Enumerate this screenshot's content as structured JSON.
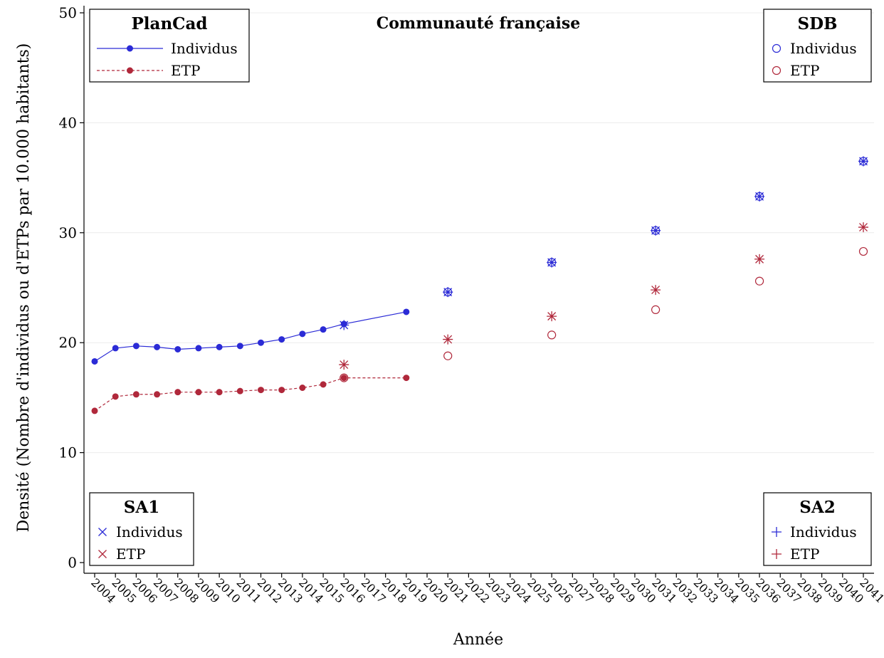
{
  "chart_data": {
    "type": "line",
    "title": "Communauté française",
    "xlabel": "Année",
    "ylabel": "Densité (Nombre d'individus ou d'ETPs par 10.000 habitants)",
    "ylim": [
      0,
      50
    ],
    "yticks": [
      0,
      10,
      20,
      30,
      40,
      50
    ],
    "xrange": [
      2004,
      2041
    ],
    "grid": "horizontal",
    "categories": [
      "2004",
      "2005",
      "2006",
      "2007",
      "2008",
      "2009",
      "2010",
      "2011",
      "2012",
      "2013",
      "2014",
      "2015",
      "2016",
      "2017",
      "2018",
      "2019",
      "2020",
      "2021",
      "2022",
      "2023",
      "2024",
      "2025",
      "2026",
      "2027",
      "2028",
      "2029",
      "2030",
      "2031",
      "2032",
      "2033",
      "2034",
      "2035",
      "2036",
      "2037",
      "2038",
      "2039",
      "2040",
      "2041"
    ],
    "series": [
      {
        "group": "PlanCad",
        "name": "Individus",
        "marker": "dot",
        "line": "solid",
        "color": "#2b2bd6",
        "x": [
          2004,
          2005,
          2006,
          2007,
          2008,
          2009,
          2010,
          2011,
          2012,
          2013,
          2014,
          2015,
          2016,
          2019
        ],
        "values": [
          18.3,
          19.5,
          19.7,
          19.6,
          19.4,
          19.5,
          19.6,
          19.7,
          20.0,
          20.3,
          20.8,
          21.2,
          21.7,
          22.8
        ]
      },
      {
        "group": "PlanCad",
        "name": "ETP",
        "marker": "dot",
        "line": "dashed",
        "color": "#b0283b",
        "x": [
          2004,
          2005,
          2006,
          2007,
          2008,
          2009,
          2010,
          2011,
          2012,
          2013,
          2014,
          2015,
          2016,
          2019
        ],
        "values": [
          13.8,
          15.1,
          15.3,
          15.3,
          15.5,
          15.5,
          15.5,
          15.6,
          15.7,
          15.7,
          15.9,
          16.2,
          16.8,
          16.8
        ]
      },
      {
        "group": "SDB",
        "name": "Individus",
        "marker": "circle",
        "color": "#2b2bd6",
        "x": [
          2021,
          2026,
          2031,
          2036,
          2041
        ],
        "values": [
          24.6,
          27.3,
          30.2,
          33.3,
          36.5
        ]
      },
      {
        "group": "SDB",
        "name": "ETP",
        "marker": "circle",
        "color": "#b0283b",
        "x": [
          2016,
          2021,
          2026,
          2031,
          2036,
          2041
        ],
        "values": [
          16.8,
          18.8,
          20.7,
          23.0,
          25.6,
          28.3
        ]
      },
      {
        "group": "SA1",
        "name": "Individus",
        "marker": "x",
        "color": "#2b2bd6",
        "x": [
          2016,
          2021,
          2026,
          2031,
          2036,
          2041
        ],
        "values": [
          21.6,
          24.6,
          27.3,
          30.2,
          33.3,
          36.5
        ]
      },
      {
        "group": "SA1",
        "name": "ETP",
        "marker": "x",
        "color": "#b0283b",
        "x": [
          2016,
          2021,
          2026,
          2031,
          2036,
          2041
        ],
        "values": [
          18.0,
          20.3,
          22.4,
          24.8,
          27.6,
          30.5
        ]
      },
      {
        "group": "SA2",
        "name": "Individus",
        "marker": "plus",
        "color": "#2b2bd6",
        "x": [
          2016,
          2021,
          2026,
          2031,
          2036,
          2041
        ],
        "values": [
          21.6,
          24.6,
          27.3,
          30.2,
          33.3,
          36.5
        ]
      },
      {
        "group": "SA2",
        "name": "ETP",
        "marker": "plus",
        "color": "#b0283b",
        "x": [
          2016,
          2021,
          2026,
          2031,
          2036,
          2041
        ],
        "values": [
          18.0,
          20.3,
          22.4,
          24.8,
          27.6,
          30.5
        ]
      }
    ],
    "legends": [
      {
        "title": "PlanCad",
        "position": "top-left",
        "items": [
          {
            "label": "Individus",
            "marker": "dot",
            "line": "solid",
            "color": "#2b2bd6"
          },
          {
            "label": "ETP",
            "marker": "dot",
            "line": "dashed",
            "color": "#b0283b"
          }
        ]
      },
      {
        "title": "SDB",
        "position": "top-right",
        "items": [
          {
            "label": "Individus",
            "marker": "circle",
            "color": "#2b2bd6"
          },
          {
            "label": "ETP",
            "marker": "circle",
            "color": "#b0283b"
          }
        ]
      },
      {
        "title": "SA1",
        "position": "bottom-left",
        "items": [
          {
            "label": "Individus",
            "marker": "x",
            "color": "#2b2bd6"
          },
          {
            "label": "ETP",
            "marker": "x",
            "color": "#b0283b"
          }
        ]
      },
      {
        "title": "SA2",
        "position": "bottom-right",
        "items": [
          {
            "label": "Individus",
            "marker": "plus",
            "color": "#2b2bd6"
          },
          {
            "label": "ETP",
            "marker": "plus",
            "color": "#b0283b"
          }
        ]
      }
    ]
  }
}
